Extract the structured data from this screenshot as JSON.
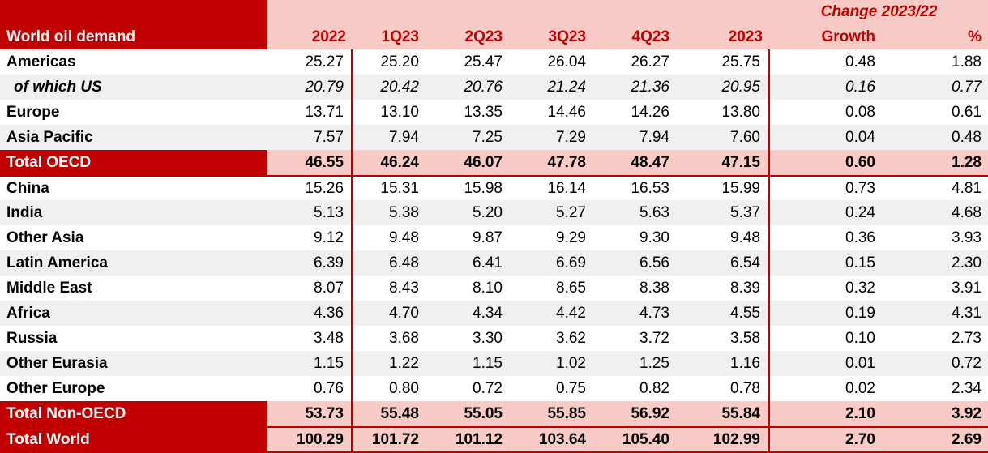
{
  "colors": {
    "dark_red": "#C00000",
    "pink_tint": "#F8CBC6",
    "stripe_gray": "#F0F0F0",
    "header_text_red": "#C00000"
  },
  "chart_data": {
    "type": "table",
    "title": "World oil demand",
    "corner_label": "World oil demand",
    "span_header": "Change 2023/22",
    "columns": [
      "2022",
      "1Q23",
      "2Q23",
      "3Q23",
      "4Q23",
      "2023",
      "Growth",
      "%"
    ],
    "rows": [
      {
        "label": "Americas",
        "style": "normal",
        "values": [
          25.27,
          25.2,
          25.47,
          26.04,
          26.27,
          25.75,
          0.48,
          1.88
        ]
      },
      {
        "label": "of which US",
        "style": "sub",
        "values": [
          20.79,
          20.42,
          20.76,
          21.24,
          21.36,
          20.95,
          0.16,
          0.77
        ]
      },
      {
        "label": "Europe",
        "style": "normal",
        "values": [
          13.71,
          13.1,
          13.35,
          14.46,
          14.26,
          13.8,
          0.08,
          0.61
        ]
      },
      {
        "label": "Asia Pacific",
        "style": "normal",
        "values": [
          7.57,
          7.94,
          7.25,
          7.29,
          7.94,
          7.6,
          0.04,
          0.48
        ]
      },
      {
        "label": "Total OECD",
        "style": "total",
        "values": [
          46.55,
          46.24,
          46.07,
          47.78,
          48.47,
          47.15,
          0.6,
          1.28
        ]
      },
      {
        "label": "China",
        "style": "normal",
        "rule_top": true,
        "values": [
          15.26,
          15.31,
          15.98,
          16.14,
          16.53,
          15.99,
          0.73,
          4.81
        ]
      },
      {
        "label": "India",
        "style": "normal",
        "values": [
          5.13,
          5.38,
          5.2,
          5.27,
          5.63,
          5.37,
          0.24,
          4.68
        ]
      },
      {
        "label": "Other Asia",
        "style": "normal",
        "values": [
          9.12,
          9.48,
          9.87,
          9.29,
          9.3,
          9.48,
          0.36,
          3.93
        ]
      },
      {
        "label": "Latin America",
        "style": "normal",
        "values": [
          6.39,
          6.48,
          6.41,
          6.69,
          6.56,
          6.54,
          0.15,
          2.3
        ]
      },
      {
        "label": "Middle East",
        "style": "normal",
        "values": [
          8.07,
          8.43,
          8.1,
          8.65,
          8.38,
          8.39,
          0.32,
          3.91
        ]
      },
      {
        "label": "Africa",
        "style": "normal",
        "values": [
          4.36,
          4.7,
          4.34,
          4.42,
          4.73,
          4.55,
          0.19,
          4.31
        ]
      },
      {
        "label": "Russia",
        "style": "normal",
        "values": [
          3.48,
          3.68,
          3.3,
          3.62,
          3.72,
          3.58,
          0.1,
          2.73
        ]
      },
      {
        "label": "Other Eurasia",
        "style": "normal",
        "values": [
          1.15,
          1.22,
          1.15,
          1.02,
          1.25,
          1.16,
          0.01,
          0.72
        ]
      },
      {
        "label": "Other Europe",
        "style": "normal",
        "values": [
          0.76,
          0.8,
          0.72,
          0.75,
          0.82,
          0.78,
          0.02,
          2.34
        ]
      },
      {
        "label": "Total Non-OECD",
        "style": "total",
        "values": [
          53.73,
          55.48,
          55.05,
          55.85,
          56.92,
          55.84,
          2.1,
          3.92
        ]
      },
      {
        "label": "Total World",
        "style": "total",
        "rule_top": true,
        "values": [
          100.29,
          101.72,
          101.12,
          103.64,
          105.4,
          102.99,
          2.7,
          2.69
        ]
      }
    ]
  }
}
